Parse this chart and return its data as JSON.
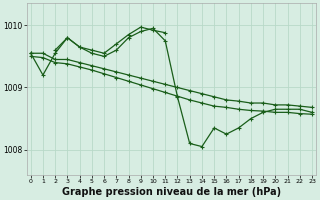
{
  "background_color": "#d7ede2",
  "grid_color": "#b8d9c8",
  "line_color": "#1a5e1a",
  "xlabel": "Graphe pression niveau de la mer (hPa)",
  "xlabel_fontsize": 7.0,
  "xticks": [
    0,
    1,
    2,
    3,
    4,
    5,
    6,
    7,
    8,
    9,
    10,
    11,
    12,
    13,
    14,
    15,
    16,
    17,
    18,
    19,
    20,
    21,
    22,
    23
  ],
  "yticks": [
    1008,
    1009,
    1010
  ],
  "ylim": [
    1007.6,
    1010.35
  ],
  "xlim": [
    -0.3,
    23.3
  ],
  "series": [
    {
      "x": [
        0,
        1,
        2,
        3,
        4,
        5,
        6,
        7,
        8,
        9,
        10,
        11,
        12,
        13,
        14,
        15,
        16,
        17,
        18,
        19,
        20,
        21,
        22,
        23
      ],
      "y": [
        1009.55,
        1009.55,
        1009.45,
        1009.45,
        1009.4,
        1009.35,
        1009.3,
        1009.25,
        1009.2,
        1009.15,
        1009.1,
        1009.05,
        1009.0,
        1008.95,
        1008.9,
        1008.85,
        1008.8,
        1008.78,
        1008.75,
        1008.75,
        1008.72,
        1008.72,
        1008.7,
        1008.68
      ]
    },
    {
      "x": [
        0,
        1,
        2,
        3,
        4,
        5,
        6,
        7,
        8,
        9,
        10,
        11,
        12,
        13,
        14,
        15,
        16,
        17,
        18,
        19,
        20,
        21,
        22,
        23
      ],
      "y": [
        1009.5,
        1009.48,
        1009.4,
        1009.38,
        1009.33,
        1009.28,
        1009.22,
        1009.16,
        1009.1,
        1009.04,
        1008.98,
        1008.92,
        1008.86,
        1008.8,
        1008.75,
        1008.7,
        1008.68,
        1008.65,
        1008.63,
        1008.62,
        1008.6,
        1008.6,
        1008.58,
        1008.57
      ]
    },
    {
      "x": [
        0,
        1,
        2,
        3,
        4,
        5,
        6,
        7,
        8,
        9,
        10,
        11,
        12,
        13,
        14,
        15,
        16,
        17,
        18,
        19,
        20,
        21,
        22,
        23
      ],
      "y": [
        1009.55,
        1009.2,
        1009.55,
        1009.8,
        1009.65,
        1009.55,
        1009.5,
        1009.6,
        1009.8,
        1009.9,
        1009.95,
        1009.75,
        1008.85,
        1008.1,
        1008.05,
        1008.35,
        1008.25,
        1008.35,
        1008.5,
        1008.6,
        1008.65,
        1008.65,
        1008.65,
        1008.6
      ]
    },
    {
      "x": [
        2,
        3,
        4,
        5,
        6,
        7,
        8,
        9,
        10,
        11
      ],
      "y": [
        1009.6,
        1009.8,
        1009.65,
        1009.6,
        1009.55,
        1009.7,
        1009.85,
        1009.97,
        1009.92,
        1009.88
      ]
    }
  ]
}
